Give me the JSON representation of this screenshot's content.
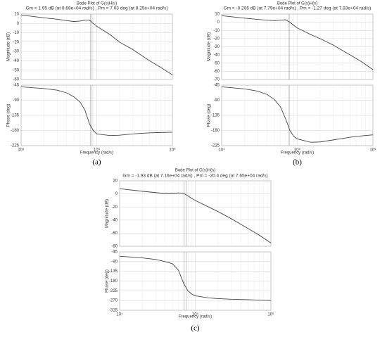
{
  "chart_data": [
    {
      "type": "bode",
      "title": "Bode Plot of G(s)H(s)",
      "subtitle": "Gm = 1.95 dB (at 8.68e+04 rad/s) ,  Pm = 7.03 deg (at 8.25e+04 rad/s)",
      "caption": "(a)",
      "xlabel": "Frequency  (rad/s)",
      "log_x": true,
      "grid": true,
      "color": "#444444",
      "x": [
        10000,
        20000,
        30000,
        40000,
        50000,
        60000,
        70000,
        80000,
        90000,
        100000,
        150000,
        200000,
        300000,
        500000,
        700000,
        1000000
      ],
      "xlim": [
        10000,
        1000000
      ],
      "xticks": [
        {
          "value": 10000,
          "label": "10⁴"
        },
        {
          "value": 100000,
          "label": "10⁵"
        },
        {
          "value": 1000000,
          "label": "10⁶"
        }
      ],
      "margin_lines_x": [
        86800,
        82500
      ],
      "magnitude": {
        "ylabel": "Magnitude (dB)",
        "ylim": [
          -60,
          10
        ],
        "yticks": [
          10,
          0,
          -10,
          -20,
          -30,
          -40,
          -50,
          -60
        ],
        "values": [
          9,
          6,
          4.5,
          3,
          2,
          2.5,
          3.5,
          3.5,
          0,
          -3,
          -12,
          -20,
          -28,
          -40,
          -47,
          -55
        ]
      },
      "phase": {
        "ylabel": "Phase (deg)",
        "ylim": [
          -225,
          -45
        ],
        "yticks": [
          -45,
          -90,
          -135,
          -180,
          -225
        ],
        "values": [
          -50,
          -55,
          -60,
          -68,
          -80,
          -95,
          -120,
          -160,
          -180,
          -190,
          -195,
          -194,
          -190,
          -187,
          -186,
          -185
        ]
      }
    },
    {
      "type": "bode",
      "title": "Bode Plot of G(s)H(s)",
      "subtitle": "Gm = -0.206 dB (at 7.79e+04 rad/s) ,  Pm = -1.27 deg (at 7.83e+04 rad/s)",
      "caption": "(b)",
      "xlabel": "Frequency  (rad/s)",
      "log_x": true,
      "grid": true,
      "color": "#444444",
      "x": [
        10000,
        20000,
        30000,
        40000,
        50000,
        60000,
        70000,
        80000,
        90000,
        100000,
        150000,
        200000,
        300000,
        500000,
        700000,
        1000000
      ],
      "xlim": [
        10000,
        1000000
      ],
      "xticks": [
        {
          "value": 10000,
          "label": "10⁴"
        },
        {
          "value": 100000,
          "label": "10⁵"
        },
        {
          "value": 1000000,
          "label": "10⁶"
        }
      ],
      "margin_lines_x": [
        77900,
        78300
      ],
      "magnitude": {
        "ylabel": "Magnitude (dB)",
        "ylim": [
          -70,
          10
        ],
        "yticks": [
          10,
          0,
          -10,
          -20,
          -30,
          -40,
          -50,
          -60,
          -70
        ],
        "values": [
          8,
          5,
          3.5,
          2.5,
          2,
          2.5,
          3,
          0,
          -4,
          -7,
          -15,
          -20,
          -28,
          -40,
          -48,
          -58
        ]
      },
      "phase": {
        "ylabel": "Phase (deg)",
        "ylim": [
          -225,
          -45
        ],
        "yticks": [
          -45,
          -90,
          -135,
          -180,
          -225
        ],
        "values": [
          -50,
          -56,
          -63,
          -73,
          -88,
          -110,
          -145,
          -180,
          -198,
          -205,
          -215,
          -214,
          -208,
          -200,
          -196,
          -193
        ]
      }
    },
    {
      "type": "bode",
      "title": "Bode Plot of G(s)H(s)",
      "subtitle": "Gm = -1.93 dB (at 7.16e+04 rad/s) ,  Pm = -20.4 deg (at 7.65e+04 rad/s)",
      "caption": "(c)",
      "xlabel": "Frequency  (rad/s)",
      "log_x": true,
      "grid": true,
      "color": "#444444",
      "x": [
        10000,
        20000,
        30000,
        40000,
        50000,
        60000,
        70000,
        80000,
        90000,
        100000,
        150000,
        200000,
        300000,
        500000,
        700000,
        1000000
      ],
      "xlim": [
        10000,
        1000000
      ],
      "xticks": [
        {
          "value": 10000,
          "label": "10⁴"
        },
        {
          "value": 100000,
          "label": "10⁵"
        },
        {
          "value": 1000000,
          "label": "10⁶"
        }
      ],
      "margin_lines_x": [
        71600,
        76500
      ],
      "magnitude": {
        "ylabel": "Magnitude (dB)",
        "ylim": [
          -80,
          20
        ],
        "yticks": [
          20,
          0,
          -20,
          -40,
          -60,
          -80
        ],
        "values": [
          8,
          4,
          2,
          0.5,
          0.5,
          1.5,
          1,
          -3,
          -7,
          -10,
          -20,
          -27,
          -38,
          -53,
          -63,
          -75
        ]
      },
      "phase": {
        "ylabel": "Phase (deg)",
        "ylim": [
          -315,
          -45
        ],
        "yticks": [
          -45,
          -90,
          -135,
          -180,
          -225,
          -270,
          -315
        ],
        "values": [
          -65,
          -73,
          -80,
          -90,
          -100,
          -130,
          -190,
          -225,
          -240,
          -248,
          -258,
          -261,
          -264,
          -266,
          -268,
          -270
        ]
      }
    }
  ]
}
